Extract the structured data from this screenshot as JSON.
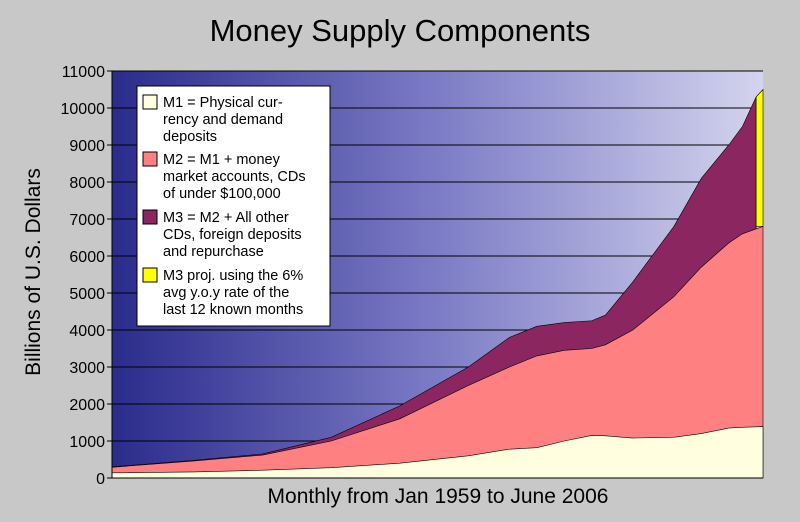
{
  "chart_data": {
    "type": "area",
    "title": "Money Supply Components",
    "xlabel": "Monthly from Jan 1959 to June 2006",
    "ylabel": "Billions of U.S. Dollars",
    "ylim": [
      0,
      11000
    ],
    "yticks": [
      0,
      1000,
      2000,
      3000,
      4000,
      5000,
      6000,
      7000,
      8000,
      9000,
      10000,
      11000
    ],
    "xlim": [
      1959.0,
      2006.5
    ],
    "grid": true,
    "legend_position": "top-left",
    "series": [
      {
        "name_lines": [
          "M1 = Physical cur-",
          "rency and demand",
          "deposits"
        ],
        "color": "#ffffe0",
        "x": [
          1959.0,
          1965.0,
          1970.0,
          1975.0,
          1980.0,
          1985.0,
          1988.0,
          1990.0,
          1992.0,
          1994.0,
          1995.0,
          1997.0,
          2000.0,
          2002.0,
          2004.0,
          2005.0,
          2006.5
        ],
        "y": [
          140,
          165,
          210,
          280,
          400,
          600,
          780,
          820,
          1000,
          1150,
          1140,
          1080,
          1100,
          1200,
          1350,
          1370,
          1390
        ]
      },
      {
        "name_lines": [
          "M2 = M1 + money",
          "market accounts, CDs",
          "of under $100,000"
        ],
        "color": "#ff8080",
        "x": [
          1959.0,
          1965.0,
          1970.0,
          1975.0,
          1980.0,
          1985.0,
          1988.0,
          1990.0,
          1992.0,
          1994.0,
          1995.0,
          1997.0,
          2000.0,
          2002.0,
          2004.0,
          2005.0,
          2006.5
        ],
        "y": [
          290,
          460,
          620,
          1000,
          1600,
          2500,
          3000,
          3300,
          3450,
          3500,
          3600,
          4000,
          4900,
          5700,
          6350,
          6600,
          6800
        ]
      },
      {
        "name_lines": [
          "M3 = M2 + All other",
          "CDs, foreign deposits",
          "and repurchase"
        ],
        "color": "#8b2660",
        "x": [
          1959.0,
          1965.0,
          1970.0,
          1975.0,
          1980.0,
          1985.0,
          1988.0,
          1990.0,
          1992.0,
          1994.0,
          1995.0,
          1997.0,
          2000.0,
          2002.0,
          2004.0,
          2005.0,
          2006.0
        ],
        "y": [
          300,
          480,
          650,
          1100,
          1950,
          3000,
          3800,
          4100,
          4200,
          4250,
          4400,
          5300,
          6800,
          8100,
          9000,
          9500,
          10300
        ]
      },
      {
        "name_lines": [
          "M3 proj. using the 6%",
          "avg y.o.y rate of the",
          "last 12 known months"
        ],
        "color": "#ffff00",
        "x": [
          2006.0,
          2006.5
        ],
        "y": [
          10300,
          10500
        ]
      }
    ]
  }
}
